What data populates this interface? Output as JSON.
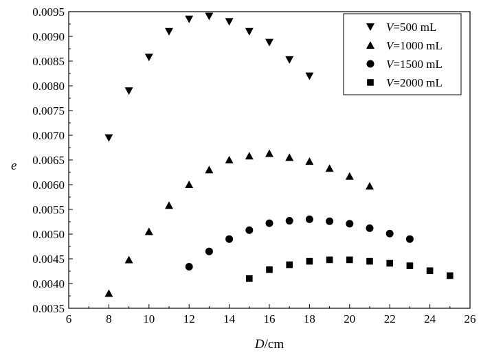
{
  "chart_data": {
    "type": "scatter",
    "title": "",
    "xlabel": {
      "var": "D",
      "unit": "/cm"
    },
    "ylabel": "e",
    "xlim": [
      6,
      26
    ],
    "ylim": [
      0.0035,
      0.0095
    ],
    "xticks": [
      "6",
      "8",
      "10",
      "12",
      "14",
      "16",
      "18",
      "20",
      "22",
      "24",
      "26"
    ],
    "yticks": [
      "0.0035",
      "0.0040",
      "0.0045",
      "0.0050",
      "0.0055",
      "0.0060",
      "0.0065",
      "0.0070",
      "0.0075",
      "0.0080",
      "0.0085",
      "0.0090",
      "0.0095"
    ],
    "grid": false,
    "legend_position": "top-right",
    "series": [
      {
        "legend_var": "V",
        "legend_value": "=500 mL",
        "marker": "triangle-down",
        "color": "#000000",
        "x": [
          8,
          9,
          10,
          11,
          12,
          13,
          14,
          15,
          16,
          17,
          18
        ],
        "y": [
          0.00695,
          0.0079,
          0.00858,
          0.0091,
          0.00935,
          0.00941,
          0.0093,
          0.0091,
          0.00888,
          0.00853,
          0.0082
        ]
      },
      {
        "legend_var": "V",
        "legend_value": "=1000 mL",
        "marker": "triangle-up",
        "color": "#000000",
        "x": [
          8,
          9,
          10,
          11,
          12,
          13,
          14,
          15,
          16,
          17,
          18,
          19,
          20,
          21
        ],
        "y": [
          0.0038,
          0.00448,
          0.00505,
          0.00558,
          0.006,
          0.0063,
          0.0065,
          0.00658,
          0.00663,
          0.00655,
          0.00647,
          0.00633,
          0.00617,
          0.00597
        ]
      },
      {
        "legend_var": "V",
        "legend_value": "=1500 mL",
        "marker": "circle",
        "color": "#000000",
        "x": [
          12,
          13,
          14,
          15,
          16,
          17,
          18,
          19,
          20,
          21,
          22,
          23
        ],
        "y": [
          0.00434,
          0.00465,
          0.0049,
          0.00508,
          0.00522,
          0.00527,
          0.0053,
          0.00526,
          0.00521,
          0.00512,
          0.00501,
          0.0049
        ]
      },
      {
        "legend_var": "V",
        "legend_value": "=2000 mL",
        "marker": "square",
        "color": "#000000",
        "x": [
          15,
          16,
          17,
          18,
          19,
          20,
          21,
          22,
          23,
          24,
          25
        ],
        "y": [
          0.0041,
          0.00428,
          0.00438,
          0.00445,
          0.00448,
          0.00448,
          0.00445,
          0.00441,
          0.00436,
          0.00426,
          0.00416
        ]
      }
    ]
  }
}
